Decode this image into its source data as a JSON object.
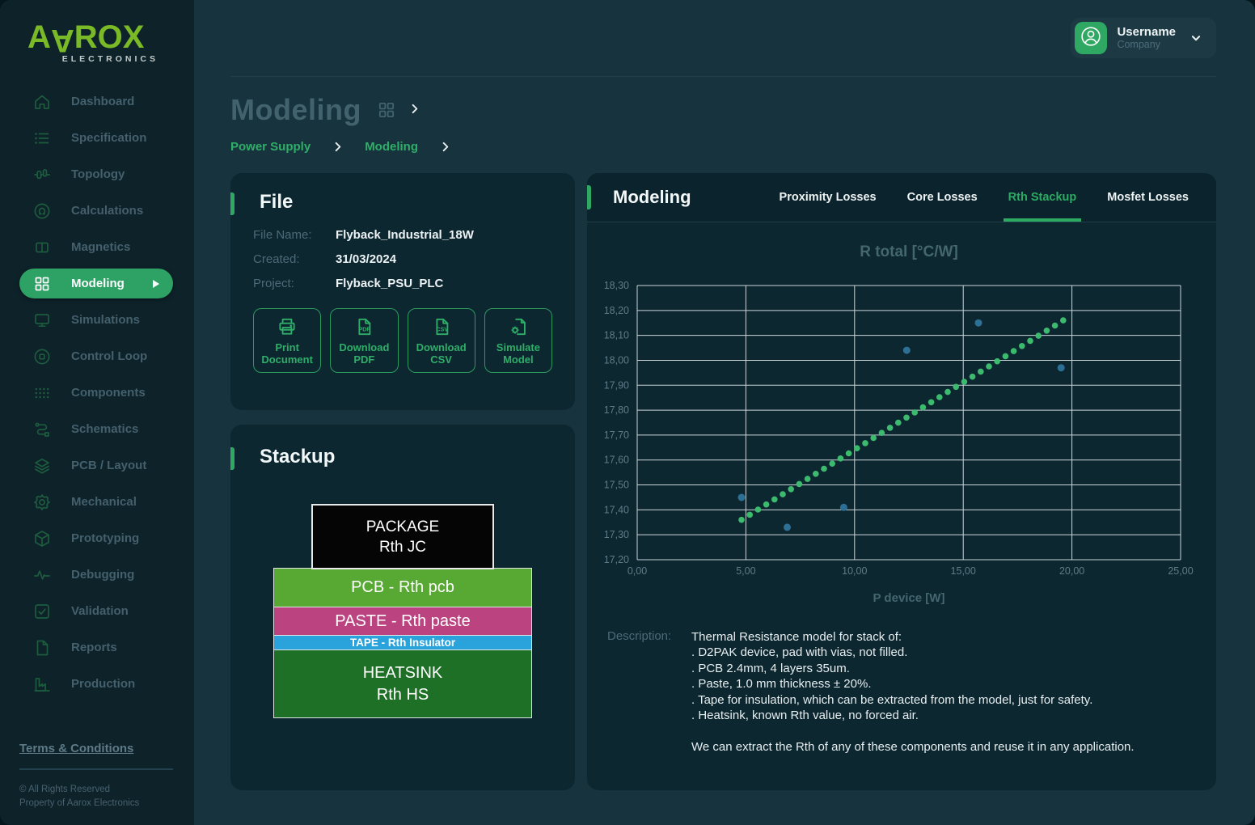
{
  "brand": {
    "logo_prefix": "A",
    "logo_flipped": "A",
    "logo_suffix": "ROX",
    "logo_subtitle": "ELECTRONICS"
  },
  "sidebar": {
    "items": [
      {
        "label": "Dashboard",
        "icon": "home-icon",
        "active": false
      },
      {
        "label": "Specification",
        "icon": "list-icon",
        "active": false
      },
      {
        "label": "Topology",
        "icon": "topology-icon",
        "active": false
      },
      {
        "label": "Calculations",
        "icon": "omega-icon",
        "active": false
      },
      {
        "label": "Magnetics",
        "icon": "magnetics-icon",
        "active": false
      },
      {
        "label": "Modeling",
        "icon": "grid-icon",
        "active": true
      },
      {
        "label": "Simulations",
        "icon": "monitor-icon",
        "active": false
      },
      {
        "label": "Control Loop",
        "icon": "control-loop-icon",
        "active": false
      },
      {
        "label": "Components",
        "icon": "components-icon",
        "active": false
      },
      {
        "label": "Schematics",
        "icon": "schematics-icon",
        "active": false
      },
      {
        "label": "PCB / Layout",
        "icon": "layers-icon",
        "active": false
      },
      {
        "label": "Mechanical",
        "icon": "gear-icon",
        "active": false
      },
      {
        "label": "Prototyping",
        "icon": "cube-icon",
        "active": false
      },
      {
        "label": "Debugging",
        "icon": "pulse-icon",
        "active": false
      },
      {
        "label": "Validation",
        "icon": "checkbox-icon",
        "active": false
      },
      {
        "label": "Reports",
        "icon": "file-icon",
        "active": false
      },
      {
        "label": "Production",
        "icon": "factory-icon",
        "active": false
      }
    ],
    "footer": {
      "terms": "Terms & Conditions",
      "rights": "© All Rights Reserved",
      "property": "Property of Aarox Electronics"
    }
  },
  "header": {
    "username": "Username",
    "company": "Company"
  },
  "page": {
    "title": "Modeling",
    "breadcrumbs": [
      "Power Supply",
      "Modeling"
    ]
  },
  "file_card": {
    "title": "File",
    "fields": [
      {
        "label": "File Name:",
        "value": "Flyback_Industrial_18W"
      },
      {
        "label": "Created:",
        "value": "31/03/2024"
      },
      {
        "label": "Project:",
        "value": "Flyback_PSU_PLC"
      }
    ],
    "buttons": [
      {
        "label": "Print Document",
        "icon": "printer-icon"
      },
      {
        "label": "Download PDF",
        "icon": "file-pdf-icon"
      },
      {
        "label": "Download CSV",
        "icon": "file-csv-icon"
      },
      {
        "label": "Simulate Model",
        "icon": "file-gear-icon"
      }
    ]
  },
  "stackup_card": {
    "title": "Stackup",
    "package": {
      "line1": "PACKAGE",
      "line2": "Rth JC",
      "color": "#050505"
    },
    "layers": [
      {
        "name": "PCB - Rth pcb",
        "color": "#57a933"
      },
      {
        "name": "PASTE - Rth paste",
        "color": "#bb4480"
      },
      {
        "name": "TAPE - Rth Insulator",
        "color": "#2aa2dc"
      },
      {
        "name": "HEATSINK",
        "line2": "Rth HS",
        "color": "#1e7026"
      }
    ]
  },
  "modeling_card": {
    "title": "Modeling",
    "tabs": [
      {
        "label": "Proximity Losses",
        "active": false
      },
      {
        "label": "Core Losses",
        "active": false
      },
      {
        "label": "Rth Stackup",
        "active": true
      },
      {
        "label": "Mosfet Losses",
        "active": false
      }
    ],
    "description_label": "Description:",
    "description_lines": [
      "Thermal Resistance model for stack of:",
      ". D2PAK device, pad with vias, not filled.",
      ". PCB 2.4mm, 4 layers 35um.",
      ". Paste, 1.0 mm thickness ± 20%.",
      ". Tape for insulation, which can be extracted from the model, just for safety.",
      ". Heatsink, known Rth value, no forced air.",
      "",
      "We can extract the Rth of any of these components and reuse it in any application."
    ]
  },
  "chart_data": {
    "type": "scatter",
    "title": "R total  [°C/W]",
    "xlabel": "P device [W]",
    "ylabel": "R total [°C/W]",
    "xlim": [
      0,
      25
    ],
    "ylim": [
      17.2,
      18.3
    ],
    "x_tick_step": 5,
    "y_tick_step": 0.1,
    "x_tick_labels": [
      "0,00",
      "5,00",
      "10,00",
      "15,00",
      "20,00",
      "25,00"
    ],
    "y_tick_labels": [
      "18,30",
      "18,20",
      "18,10",
      "18,00",
      "17,90",
      "17,80",
      "17,70",
      "17,60",
      "17,50",
      "17,40",
      "17,30",
      "17,20"
    ],
    "grid": true,
    "legend": "none",
    "series": [
      {
        "name": "model-trend",
        "style": "dotted-line",
        "color": "#3cba6d",
        "trend": {
          "start": [
            4.8,
            17.36
          ],
          "end": [
            19.6,
            18.16
          ],
          "points": 40
        }
      },
      {
        "name": "measured-samples",
        "style": "scatter",
        "color": "#2d7095",
        "points": [
          [
            4.8,
            17.45
          ],
          [
            6.9,
            17.33
          ],
          [
            9.5,
            17.41
          ],
          [
            12.4,
            18.04
          ],
          [
            15.7,
            18.15
          ],
          [
            19.5,
            17.97
          ]
        ]
      }
    ]
  },
  "colors": {
    "accent_green": "#2fa863",
    "logo_green": "#7bba27",
    "sidebar_bg": "#0e222a",
    "main_bg": "#17343e",
    "card_bg": "#0d2731"
  }
}
